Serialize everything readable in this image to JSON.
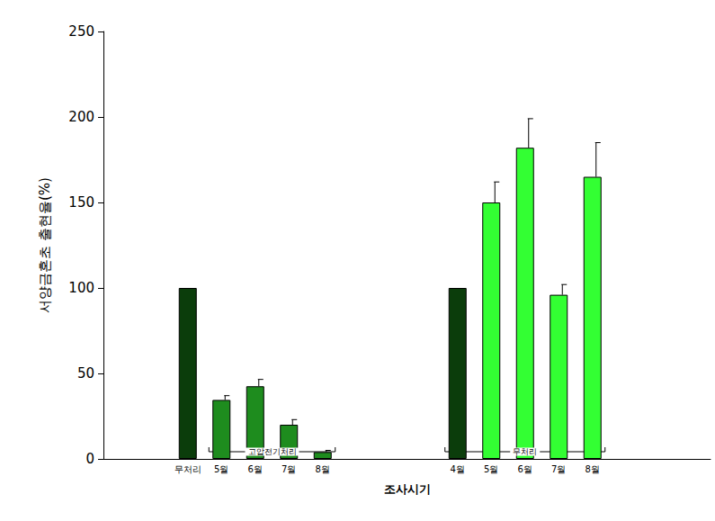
{
  "chart_data": {
    "type": "bar",
    "x_label": "조사시기",
    "y_label": "서양금혼초 출현율(%)",
    "categories": [
      null,
      null,
      "무처리",
      "5월",
      "6월",
      "7월",
      "8월",
      null,
      null,
      null,
      "4월",
      "5월",
      "6월",
      "7월",
      "8월",
      null,
      null,
      null
    ],
    "values": [
      null,
      null,
      100,
      34.5,
      42.5,
      20,
      4,
      null,
      null,
      null,
      100,
      150,
      182,
      96,
      165,
      null,
      null,
      null
    ],
    "errors": [
      null,
      null,
      null,
      2.5,
      4,
      3,
      1,
      null,
      null,
      null,
      null,
      12,
      17,
      6,
      20,
      null,
      null,
      null
    ],
    "colors": [
      null,
      null,
      "#0b3d0b",
      "#1e8c1e",
      "#1e8c1e",
      "#1e8c1e",
      "#1e8c1e",
      null,
      null,
      null,
      "#0b3d0b",
      "#33ff33",
      "#33ff33",
      "#33ff33",
      "#33ff33",
      null,
      null,
      null
    ],
    "groups": [
      {
        "label": "고압전기처리",
        "span": [
          3,
          6
        ]
      },
      {
        "label": "무처리",
        "span": [
          10,
          14
        ]
      }
    ],
    "ylim": [
      0,
      250
    ],
    "yticks": [
      0,
      50,
      100,
      150,
      200,
      250
    ],
    "grid": false
  }
}
